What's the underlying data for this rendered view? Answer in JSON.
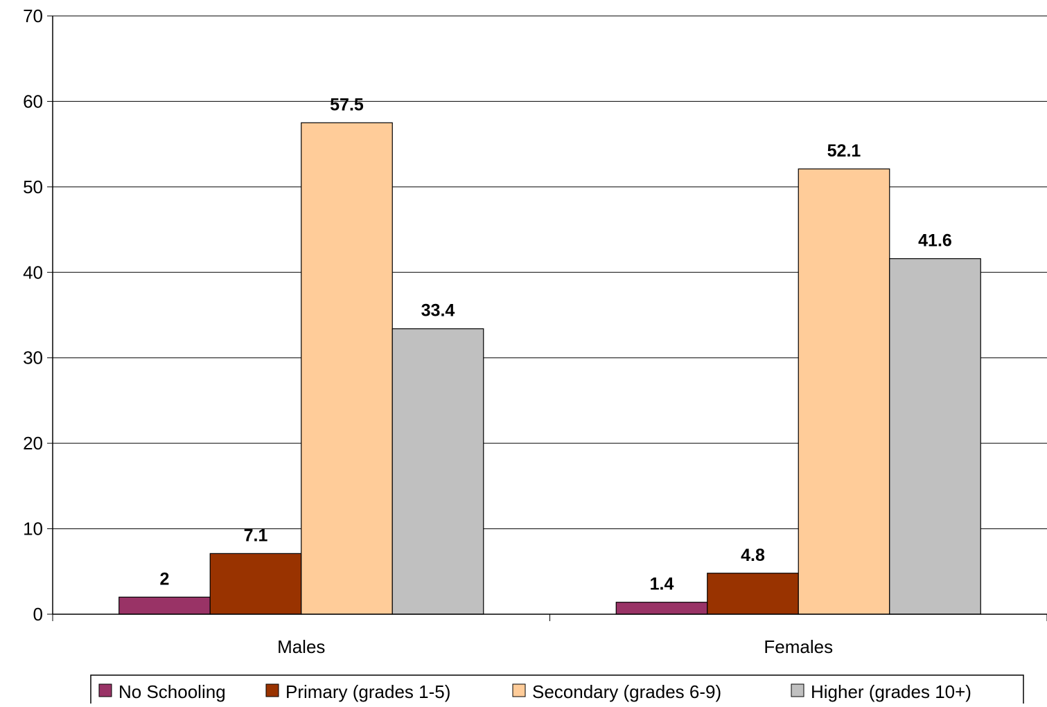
{
  "chart_data": {
    "type": "bar",
    "title": "",
    "xlabel": "",
    "ylabel": "",
    "categories": [
      "Males",
      "Females"
    ],
    "series": [
      {
        "name": "No Schooling",
        "values": [
          2,
          1.4
        ],
        "color": "#993366",
        "value_labels": [
          "2",
          "1.4"
        ]
      },
      {
        "name": "Primary (grades 1-5)",
        "values": [
          7.1,
          4.8
        ],
        "color": "#993300",
        "value_labels": [
          "7.1",
          "4.8"
        ]
      },
      {
        "name": "Secondary (grades 6-9)",
        "values": [
          57.5,
          52.1
        ],
        "color": "#FFCC99",
        "value_labels": [
          "57.5",
          "52.1"
        ]
      },
      {
        "name": "Higher (grades 10+)",
        "values": [
          33.4,
          41.6
        ],
        "color": "#C0C0C0",
        "value_labels": [
          "33.4",
          "41.6"
        ]
      }
    ],
    "ylim": [
      0,
      70
    ],
    "yticks": [
      "0",
      "10",
      "20",
      "30",
      "40",
      "50",
      "60",
      "70"
    ],
    "grid": true,
    "legend_position": "bottom"
  }
}
